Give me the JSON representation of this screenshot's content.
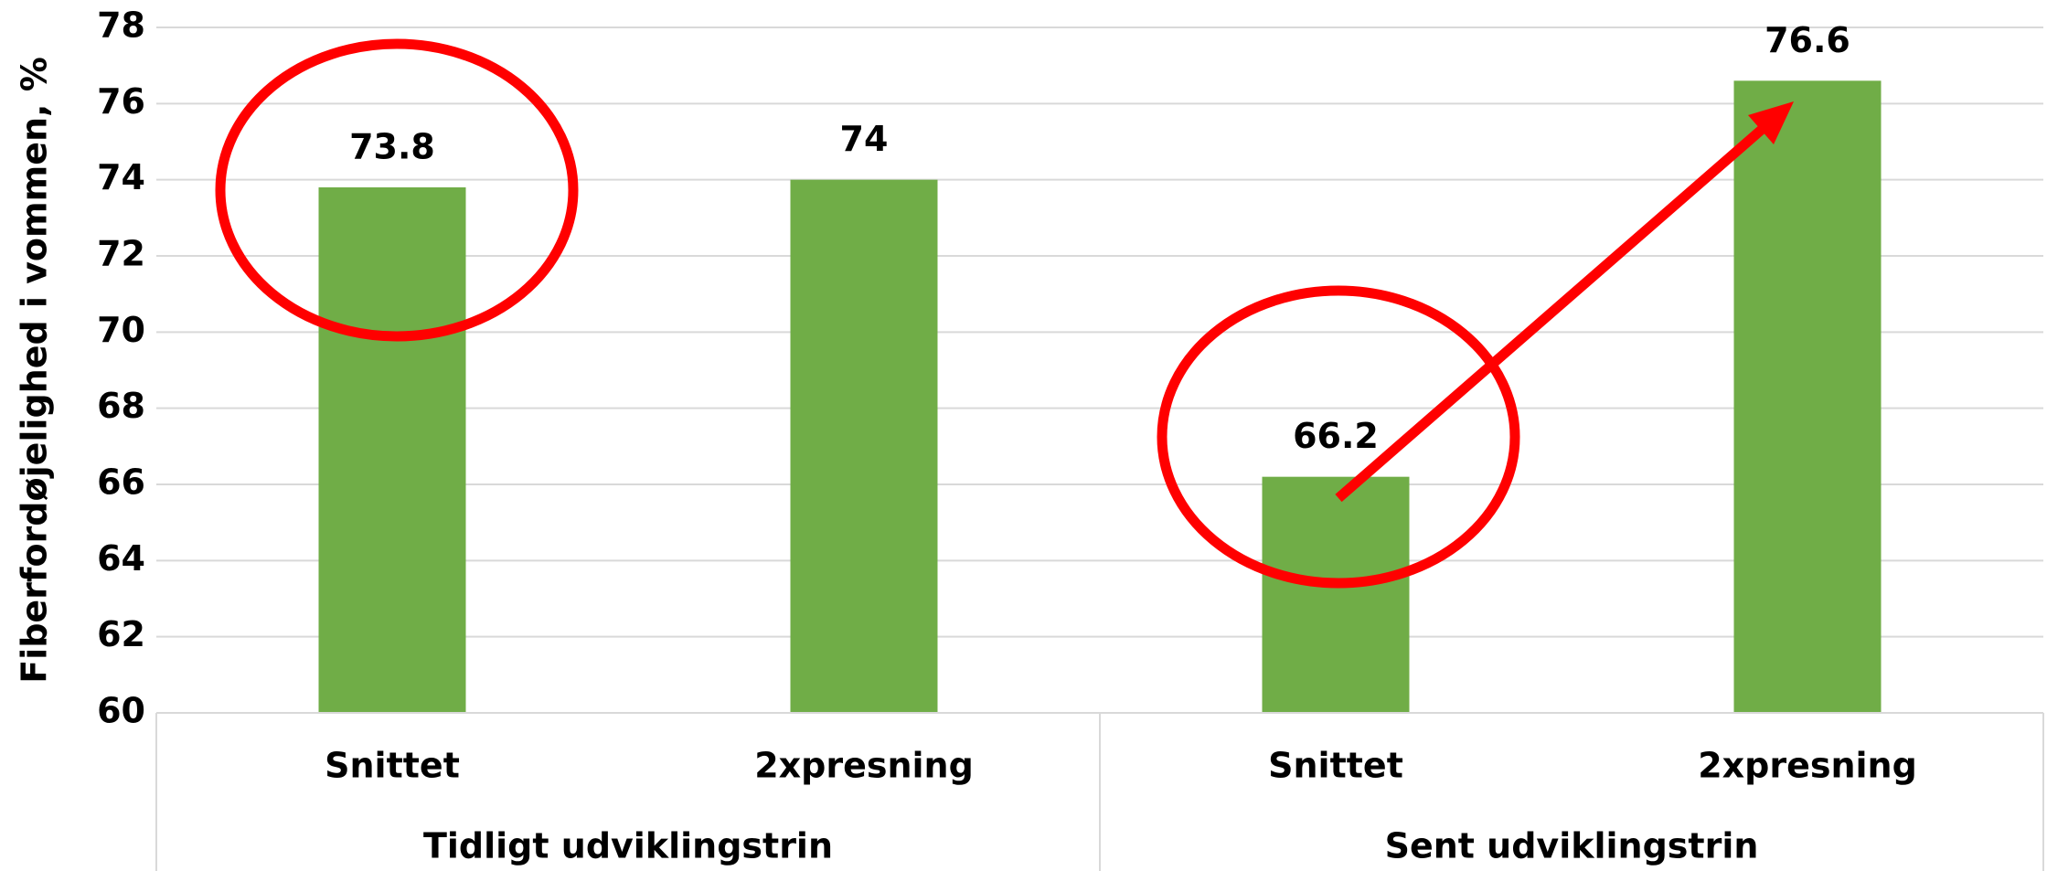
{
  "chart_data": {
    "type": "bar",
    "y_label": "Fiberfordøjelighed i vommen, %",
    "categories": [
      "Snittet",
      "2xpresning",
      "Snittet",
      "2xpresning"
    ],
    "groups": [
      "Tidligt udviklingstrin",
      "Sent udviklingstrin"
    ],
    "values": [
      73.8,
      74,
      66.2,
      76.6
    ],
    "color": "#70ad47",
    "ylim": [
      60,
      78
    ],
    "yticks": [
      60,
      62,
      64,
      66,
      68,
      70,
      72,
      74,
      76,
      78
    ],
    "grid": true
  }
}
